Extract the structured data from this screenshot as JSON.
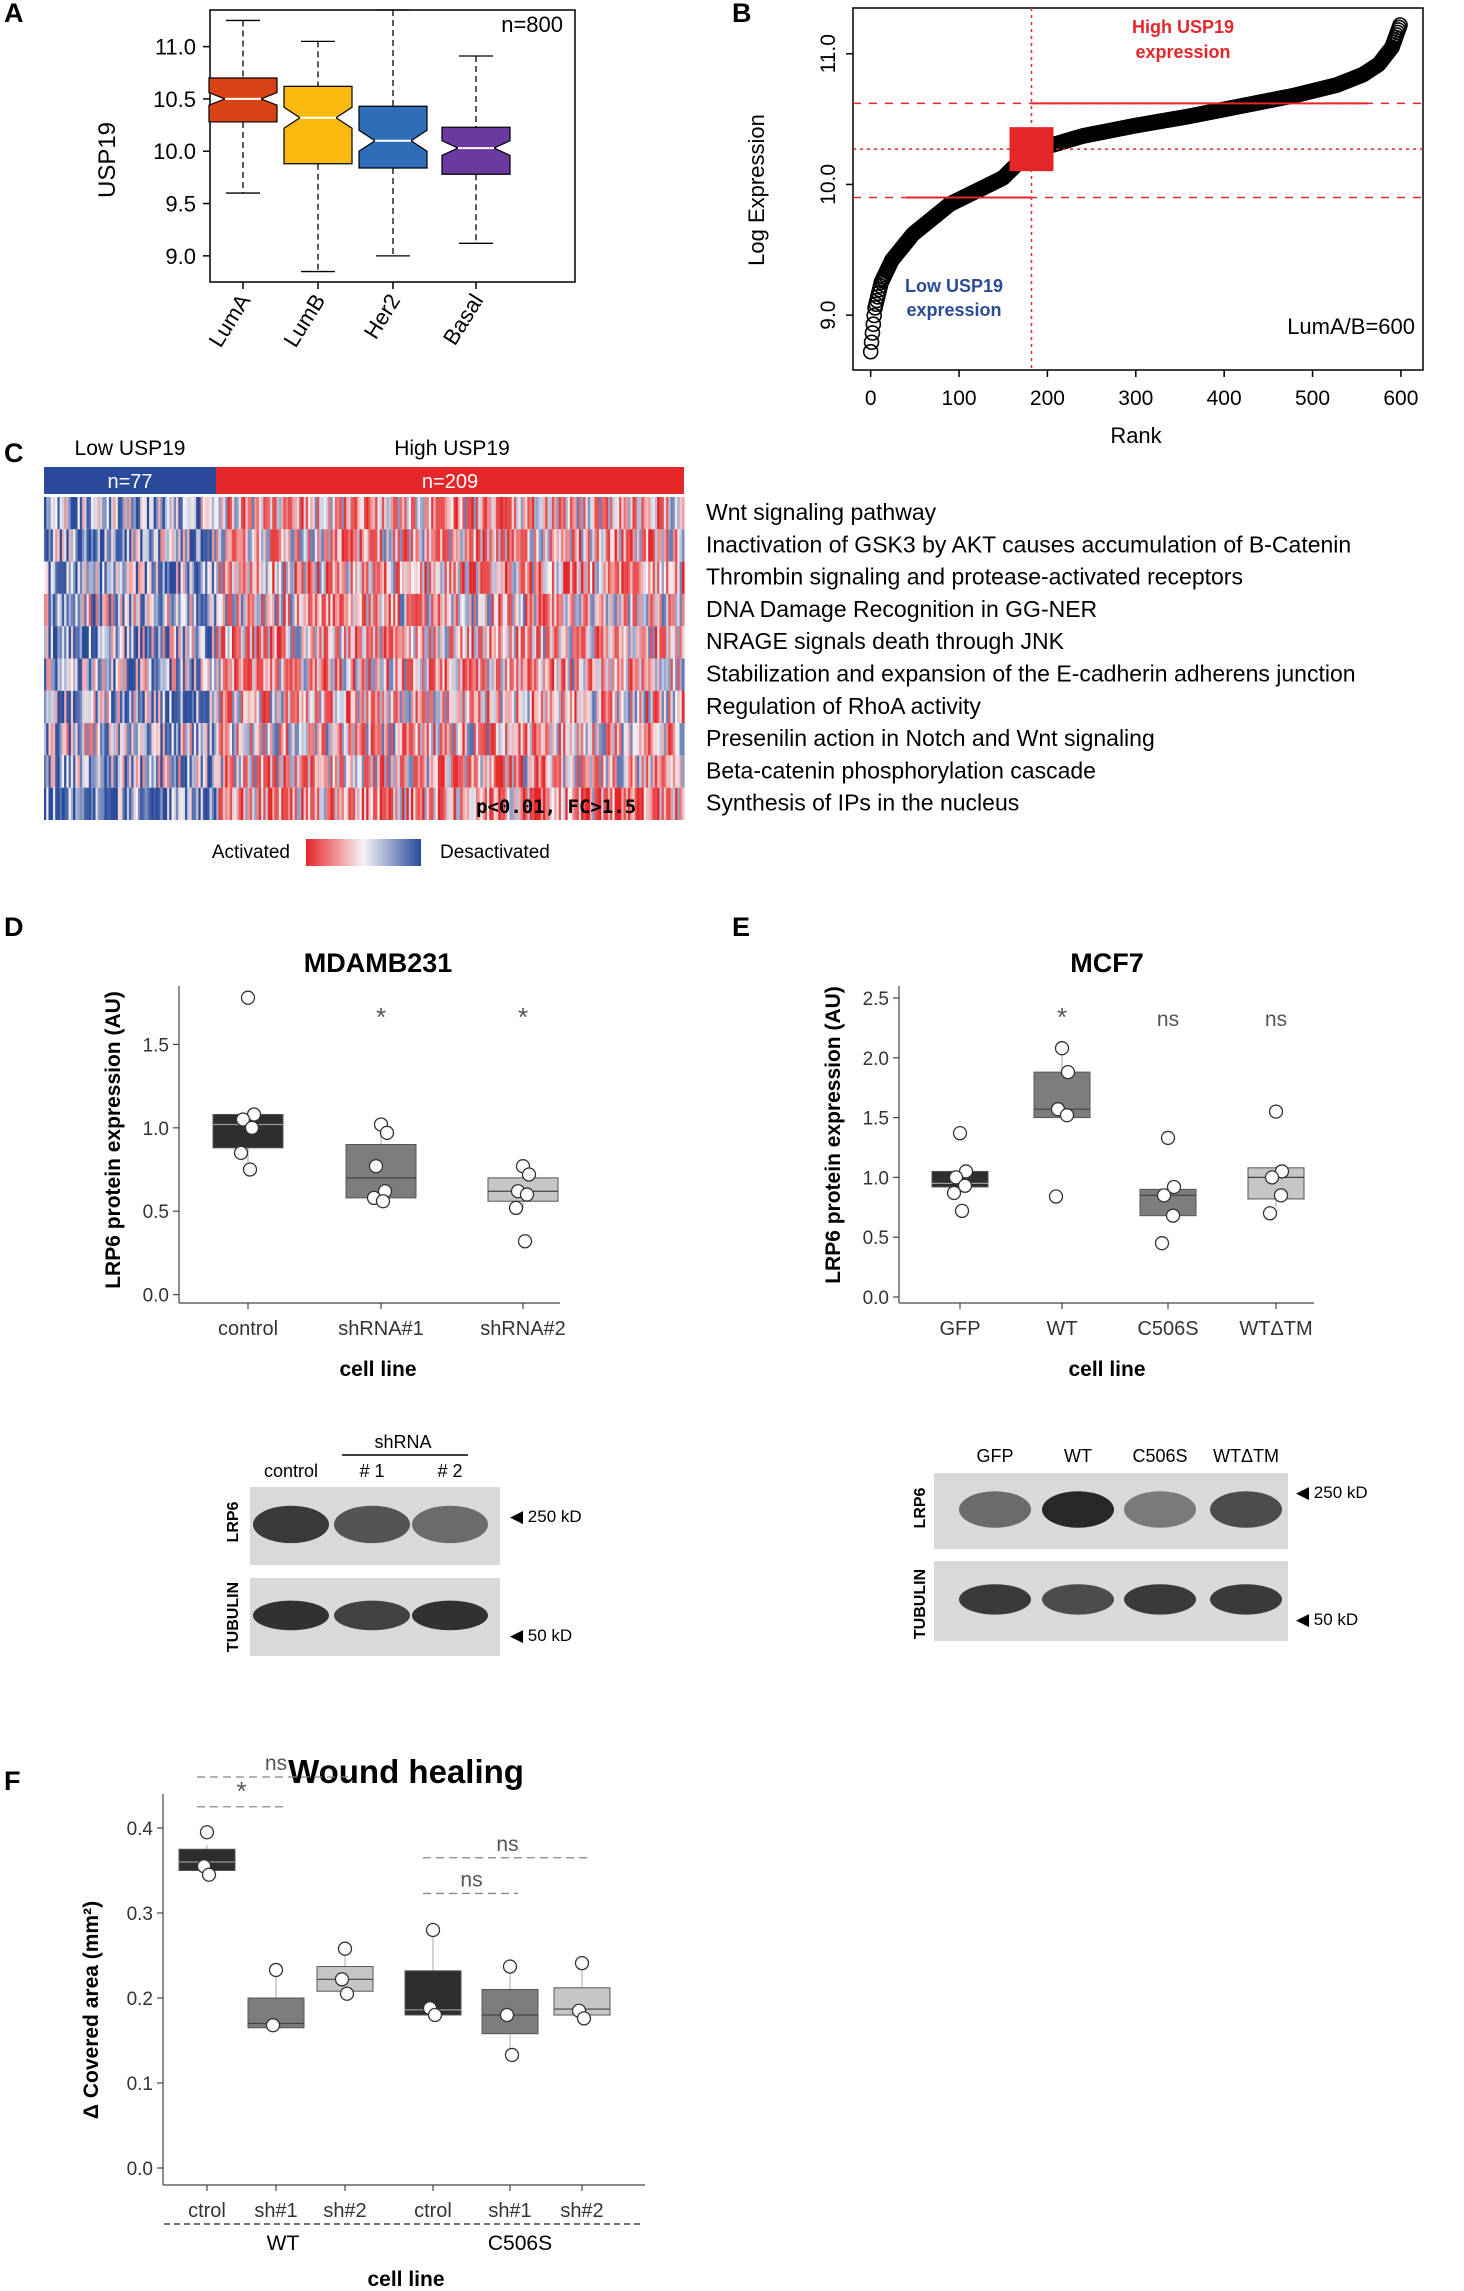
{
  "panel_labels": [
    "A",
    "B",
    "C",
    "D",
    "E",
    "F"
  ],
  "colors": {
    "lumA": "#d84315",
    "lumB": "#f9b90f",
    "her2": "#2f6db8",
    "basal": "#6a3a9e",
    "red": "#e52628",
    "blue": "#2a4b9b",
    "dark": "#2e2e2e",
    "mid": "#7d7d7d",
    "light": "#c6c6c6"
  },
  "chart_data": [
    {
      "id": "A",
      "type": "box",
      "ylabel": "USP19",
      "n_label": "n=800",
      "categories": [
        "LumA",
        "LumB",
        "Her2",
        "Basal"
      ],
      "ylim": [
        8.75,
        11.35
      ],
      "yticks": [
        9.0,
        9.5,
        10.0,
        10.5,
        11.0
      ],
      "ytick_labels": [
        "9.0",
        "9.5",
        "10.0",
        "10.5",
        "11.0"
      ],
      "boxes": [
        {
          "name": "LumA",
          "whisker_low": 9.6,
          "q1": 10.28,
          "median": 10.5,
          "q3": 10.7,
          "whisker_high": 11.25,
          "notch": [
            10.44,
            10.56
          ],
          "color": "#d84315"
        },
        {
          "name": "LumB",
          "whisker_low": 8.85,
          "q1": 9.88,
          "median": 10.32,
          "q3": 10.62,
          "whisker_high": 11.05,
          "notch": [
            10.22,
            10.42
          ],
          "color": "#f9b90f"
        },
        {
          "name": "Her2",
          "whisker_low": 9.0,
          "q1": 9.84,
          "median": 10.1,
          "q3": 10.43,
          "whisker_high": 11.35,
          "notch": [
            10.0,
            10.2
          ],
          "color": "#2f6db8"
        },
        {
          "name": "Basal",
          "whisker_low": 9.12,
          "q1": 9.78,
          "median": 10.03,
          "q3": 10.23,
          "whisker_high": 10.91,
          "notch": [
            9.96,
            10.1
          ],
          "color": "#6a3a9e"
        }
      ]
    },
    {
      "id": "B",
      "type": "scatter",
      "xlabel": "Rank",
      "ylabel": "Log Expression",
      "n_label": "LumA/B=600",
      "xlim": [
        -20,
        625
      ],
      "ylim": [
        8.58,
        11.35
      ],
      "xticks": [
        0,
        100,
        200,
        300,
        400,
        500,
        600
      ],
      "xtick_labels": [
        "0",
        "100",
        "200",
        "300",
        "400",
        "500",
        "600"
      ],
      "yticks": [
        9.0,
        10.0,
        11.0
      ],
      "ytick_labels": [
        "9.0",
        "10.0",
        "11.0"
      ],
      "high_label": [
        "High USP19",
        "expression"
      ],
      "low_label": [
        "Low USP19",
        "expression"
      ],
      "cutoff_rank": 182,
      "median_value": 10.27,
      "sd_lines": [
        9.9,
        10.62
      ],
      "quantiles": [
        {
          "p": 0,
          "v": 8.72
        },
        {
          "p": 0.003,
          "v": 8.85
        },
        {
          "p": 0.008,
          "v": 9.05
        },
        {
          "p": 0.02,
          "v": 9.25
        },
        {
          "p": 0.04,
          "v": 9.42
        },
        {
          "p": 0.08,
          "v": 9.62
        },
        {
          "p": 0.15,
          "v": 9.85
        },
        {
          "p": 0.25,
          "v": 10.05
        },
        {
          "p": 0.3,
          "v": 10.25
        },
        {
          "p": 0.4,
          "v": 10.37
        },
        {
          "p": 0.5,
          "v": 10.45
        },
        {
          "p": 0.6,
          "v": 10.52
        },
        {
          "p": 0.7,
          "v": 10.6
        },
        {
          "p": 0.8,
          "v": 10.68
        },
        {
          "p": 0.88,
          "v": 10.76
        },
        {
          "p": 0.93,
          "v": 10.84
        },
        {
          "p": 0.96,
          "v": 10.92
        },
        {
          "p": 0.985,
          "v": 11.05
        },
        {
          "p": 1,
          "v": 11.22
        }
      ]
    },
    {
      "id": "C",
      "type": "heatmap",
      "group_headers": [
        "Low USP19",
        "High USP19"
      ],
      "group_n": [
        "n=77",
        "n=209"
      ],
      "group_sizes": [
        77,
        209
      ],
      "rows": [
        "Wnt signaling pathway",
        "Inactivation of GSK3 by AKT causes accumulation of B-Catenin",
        "Thrombin signaling and protease-activated receptors",
        "DNA Damage Recognition in GG-NER",
        "NRAGE signals death through JNK",
        "Stabilization and expansion of the E-cadherin adherens junction",
        "Regulation of RhoA activity",
        "Presenilin action in Notch and Wnt signaling",
        "Beta-catenin phosphorylation cascade",
        "Synthesis of IPs in the nucleus"
      ],
      "stat_label": "p<0.01, FC>1.5",
      "legend_low": "Activated",
      "legend_high": "Desactivated"
    },
    {
      "id": "D",
      "type": "box",
      "title": "MDAMB231",
      "xlabel": "cell line",
      "ylabel": "LRP6 protein expression (AU)",
      "categories": [
        "control",
        "shRNA#1",
        "shRNA#2"
      ],
      "ylim": [
        -0.05,
        1.85
      ],
      "yticks": [
        0,
        0.5,
        1.0,
        1.5
      ],
      "ytick_labels": [
        "0.0",
        "0.5",
        "1.0",
        "1.5"
      ],
      "boxes": [
        {
          "q1": 0.88,
          "median": 1.02,
          "q3": 1.08,
          "wlow": 0.75,
          "whigh": 1.1,
          "fill": "#2e2e2e",
          "sig": "",
          "points": [
            1.78,
            1.08,
            1.05,
            1.0,
            0.85,
            0.75
          ]
        },
        {
          "q1": 0.58,
          "median": 0.7,
          "q3": 0.9,
          "wlow": 0.56,
          "whigh": 1.02,
          "fill": "#7d7d7d",
          "sig": "*",
          "points": [
            1.02,
            0.97,
            0.77,
            0.62,
            0.58,
            0.56
          ]
        },
        {
          "q1": 0.56,
          "median": 0.62,
          "q3": 0.7,
          "wlow": 0.52,
          "whigh": 0.77,
          "fill": "#c6c6c6",
          "sig": "*",
          "points": [
            0.77,
            0.72,
            0.62,
            0.6,
            0.52,
            0.32
          ]
        }
      ]
    },
    {
      "id": "E",
      "type": "box",
      "title": "MCF7",
      "xlabel": "cell line",
      "ylabel": "LRP6 protein expression (AU)",
      "categories": [
        "GFP",
        "WT",
        "C506S",
        "WTΔTM"
      ],
      "ylim": [
        -0.05,
        2.6
      ],
      "yticks": [
        0,
        0.5,
        1.0,
        1.5,
        2.0,
        2.5
      ],
      "ytick_labels": [
        "0.0",
        "0.5",
        "1.0",
        "1.5",
        "2.0",
        "2.5"
      ],
      "boxes": [
        {
          "q1": 0.92,
          "median": 0.95,
          "q3": 1.05,
          "wlow": 0.87,
          "whigh": 1.07,
          "fill": "#2e2e2e",
          "sig": "",
          "points": [
            1.37,
            1.05,
            1.0,
            0.93,
            0.87,
            0.72
          ]
        },
        {
          "q1": 1.5,
          "median": 1.57,
          "q3": 1.88,
          "wlow": 1.5,
          "whigh": 2.07,
          "fill": "#7d7d7d",
          "sig": "*",
          "points": [
            2.08,
            1.88,
            1.57,
            1.52,
            0.84
          ]
        },
        {
          "q1": 0.68,
          "median": 0.85,
          "q3": 0.9,
          "wlow": 0.68,
          "whigh": 0.92,
          "fill": "#7d7d7d",
          "sig": "ns",
          "points": [
            1.33,
            0.92,
            0.85,
            0.68,
            0.45
          ]
        },
        {
          "q1": 0.82,
          "median": 1.0,
          "q3": 1.08,
          "wlow": 0.75,
          "whigh": 1.1,
          "fill": "#c6c6c6",
          "sig": "ns",
          "points": [
            1.55,
            1.05,
            1.0,
            0.85,
            0.7
          ]
        }
      ]
    },
    {
      "id": "F",
      "type": "box",
      "title": "Wound healing",
      "xlabel": "cell line",
      "ylabel": "Δ Covered area (mm²)",
      "categories": [
        "ctrol",
        "sh#1",
        "sh#2",
        "ctrol",
        "sh#1",
        "sh#2"
      ],
      "group_labels": [
        "WT",
        "C506S"
      ],
      "ylim": [
        -0.02,
        0.44
      ],
      "yticks": [
        0,
        0.1,
        0.2,
        0.3,
        0.4
      ],
      "ytick_labels": [
        "0.0",
        "0.1",
        "0.2",
        "0.3",
        "0.4"
      ],
      "boxes": [
        {
          "q1": 0.35,
          "median": 0.36,
          "q3": 0.375,
          "wlow": 0.345,
          "whigh": 0.38,
          "fill": "#2e2e2e",
          "points": [
            0.395,
            0.355,
            0.345
          ]
        },
        {
          "q1": 0.165,
          "median": 0.17,
          "q3": 0.2,
          "wlow": 0.165,
          "whigh": 0.232,
          "fill": "#7d7d7d",
          "points": [
            0.233,
            0.168
          ]
        },
        {
          "q1": 0.208,
          "median": 0.222,
          "q3": 0.237,
          "wlow": 0.208,
          "whigh": 0.255,
          "fill": "#c6c6c6",
          "points": [
            0.258,
            0.222,
            0.205
          ]
        },
        {
          "q1": 0.18,
          "median": 0.186,
          "q3": 0.232,
          "wlow": 0.18,
          "whigh": 0.28,
          "fill": "#2e2e2e",
          "points": [
            0.28,
            0.188,
            0.18
          ]
        },
        {
          "q1": 0.158,
          "median": 0.18,
          "q3": 0.21,
          "wlow": 0.13,
          "whigh": 0.235,
          "fill": "#7d7d7d",
          "points": [
            0.237,
            0.18,
            0.133
          ]
        },
        {
          "q1": 0.18,
          "median": 0.187,
          "q3": 0.212,
          "wlow": 0.175,
          "whigh": 0.24,
          "fill": "#c6c6c6",
          "points": [
            0.241,
            0.185,
            0.176
          ]
        }
      ],
      "sig_brackets": [
        {
          "from": 0,
          "to": 1,
          "label": "*",
          "y": 0.425
        },
        {
          "from": 0,
          "to": 2,
          "label": "ns",
          "y": 0.46
        },
        {
          "from": 3,
          "to": 4,
          "label": "ns",
          "y": 0.323
        },
        {
          "from": 3,
          "to": 5,
          "label": "ns",
          "y": 0.365
        }
      ]
    }
  ],
  "blots": {
    "D": {
      "shrna_label": "shRNA",
      "lanes": [
        "control",
        "# 1",
        "# 2"
      ],
      "rows": [
        "LRP6",
        "TUBULIN"
      ],
      "sizes": [
        "250 kD",
        "50 kD"
      ],
      "lrp6_intensity": [
        0.85,
        0.7,
        0.55
      ],
      "tub_intensity": [
        0.9,
        0.8,
        0.9
      ]
    },
    "E": {
      "lanes": [
        "GFP",
        "WT",
        "C506S",
        "WTΔTM"
      ],
      "rows": [
        "LRP6",
        "TUBULIN"
      ],
      "sizes": [
        "250 kD",
        "50 kD"
      ],
      "lrp6_intensity": [
        0.55,
        0.95,
        0.45,
        0.75
      ],
      "tub_intensity": [
        0.85,
        0.75,
        0.85,
        0.85
      ]
    }
  }
}
